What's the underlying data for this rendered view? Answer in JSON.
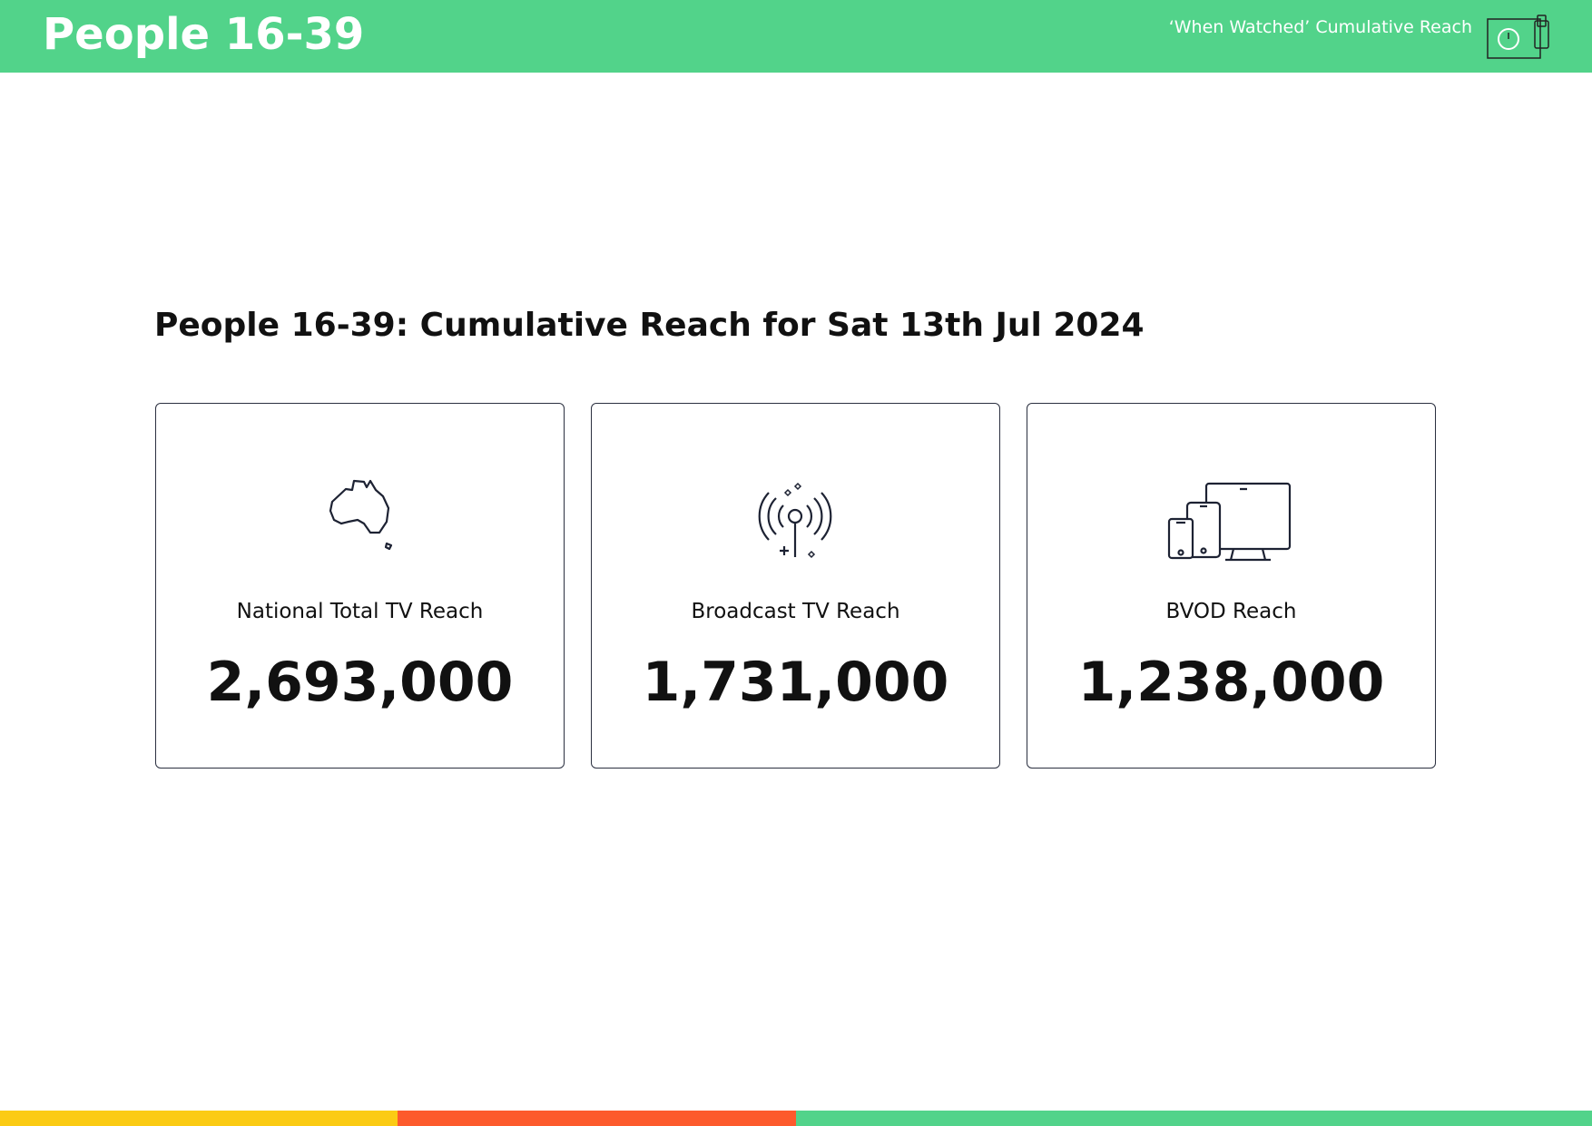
{
  "header": {
    "title": "People 16-39",
    "subtitle": "‘When Watched’ Cumulative Reach"
  },
  "heading": "People 16-39: Cumulative Reach for Sat 13th Jul 2024",
  "cards": [
    {
      "label": "National Total TV Reach",
      "value": "2,693,000"
    },
    {
      "label": "Broadcast TV Reach",
      "value": "1,731,000"
    },
    {
      "label": "BVOD Reach",
      "value": "1,238,000"
    }
  ]
}
